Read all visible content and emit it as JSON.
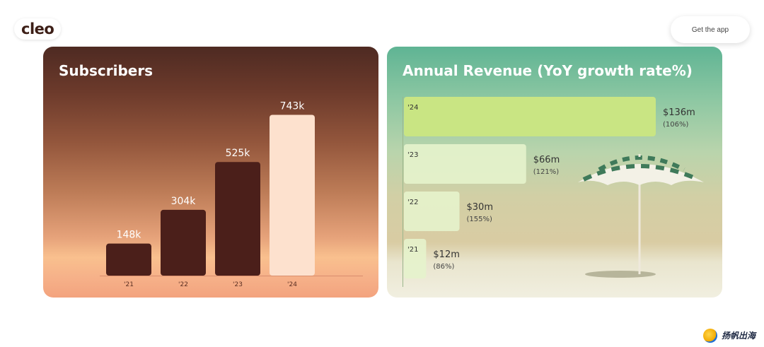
{
  "header": {
    "logo_text": "cleo",
    "cta_label": "Get the app"
  },
  "watermark": {
    "text": "扬帆出海"
  },
  "colors": {
    "bar_dark": "#4b1f1a",
    "bar_highlight": "#fde1ce",
    "rev_highlight": "#c9e583",
    "rev_light": "#e5f3cc"
  },
  "chart_data": [
    {
      "type": "bar",
      "title": "Subscribers",
      "categories": [
        "'21",
        "'22",
        "'23",
        "'24"
      ],
      "values": [
        148,
        304,
        525,
        743
      ],
      "labels": [
        "148k",
        "304k",
        "525k",
        "743k"
      ],
      "ylim": [
        0,
        800
      ],
      "highlight_index": 3
    },
    {
      "type": "bar",
      "orientation": "horizontal",
      "title": "Annual Revenue (YoY growth rate%)",
      "categories": [
        "'24",
        "'23",
        "'22",
        "'21"
      ],
      "values": [
        136,
        66,
        30,
        12
      ],
      "labels": [
        "$136m",
        "$66m",
        "$30m",
        "$12m"
      ],
      "growth_labels": [
        "(106%)",
        "(121%)",
        "(155%)",
        "(86%)"
      ],
      "xlim": [
        0,
        136
      ],
      "highlight_index": 0
    }
  ]
}
